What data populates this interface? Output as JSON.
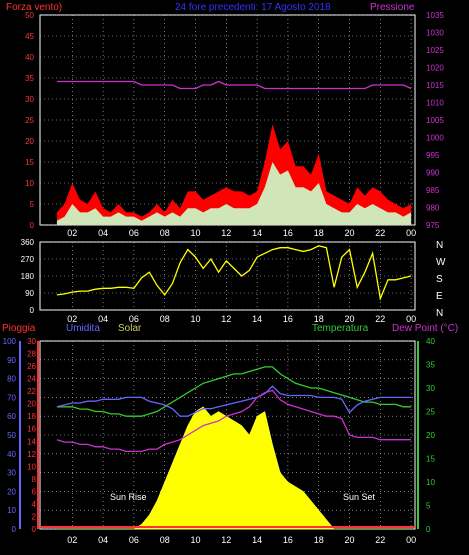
{
  "header": {
    "left_label": "Forza vento)",
    "center_label": "24 fore precedenti: 17 Agosto 2018",
    "right_label": "Pressione"
  },
  "legend": {
    "pioggia": "Pioggia",
    "umidita": "Umidita",
    "solar": "Solar",
    "temperatura": "Temperatura",
    "dewpoint": "Dew Point (°C)",
    "sunrise": "Sun Rise",
    "sunset": "Sun Set"
  },
  "colors": {
    "wind_gust": "#ff0000",
    "wind_avg": "#ccffcc",
    "pressure": "#cc33cc",
    "direction": "#ffff00",
    "rain": "#ff3333",
    "humidity": "#6666ff",
    "solar": "#ffff00",
    "temperature": "#33cc33",
    "dewpoint": "#cc33cc",
    "grid": "#cccccc"
  },
  "chart_data": [
    {
      "type": "area",
      "name": "wind_pressure",
      "x_ticks": [
        "02",
        "04",
        "06",
        "08",
        "10",
        "12",
        "14",
        "16",
        "18",
        "20",
        "22",
        "00"
      ],
      "y_left_ticks": [
        0,
        5,
        10,
        15,
        20,
        25,
        30,
        35,
        40,
        45,
        50
      ],
      "y_right_ticks": [
        975,
        980,
        985,
        990,
        995,
        1000,
        1005,
        1010,
        1015,
        1020,
        1025,
        1030,
        1035
      ],
      "ylim_left": [
        0,
        50
      ],
      "ylim_right": [
        975,
        1035
      ],
      "grid": true,
      "hours": [
        1.0,
        1.5,
        2.0,
        2.5,
        3.0,
        3.5,
        4.0,
        4.5,
        5.0,
        5.5,
        6.0,
        6.5,
        7.0,
        7.5,
        8.0,
        8.5,
        9.0,
        9.5,
        10.0,
        10.5,
        11.0,
        11.5,
        12.0,
        12.5,
        13.0,
        13.5,
        14.0,
        14.5,
        15.0,
        15.5,
        16.0,
        16.5,
        17.0,
        17.5,
        18.0,
        18.5,
        19.0,
        19.5,
        20.0,
        20.5,
        21.0,
        21.5,
        22.0,
        22.5,
        23.0,
        23.5,
        24.0
      ],
      "series": [
        {
          "key": "gust",
          "values": [
            3,
            5,
            10,
            6,
            5,
            8,
            4,
            3,
            5,
            3,
            3,
            2,
            3,
            5,
            3,
            6,
            4,
            8,
            8,
            6,
            7,
            8,
            9,
            8,
            8,
            7,
            8,
            15,
            24,
            18,
            20,
            14,
            14,
            12,
            17,
            8,
            7,
            6,
            5,
            9,
            7,
            9,
            8,
            6,
            5,
            4,
            5
          ]
        },
        {
          "key": "avg",
          "values": [
            1,
            2,
            5,
            3,
            3,
            4,
            2,
            2,
            3,
            2,
            2,
            1,
            2,
            3,
            2,
            3,
            2,
            4,
            4,
            3,
            4,
            4,
            5,
            4,
            4,
            4,
            5,
            9,
            15,
            12,
            13,
            9,
            9,
            8,
            10,
            5,
            4,
            3,
            3,
            5,
            4,
            5,
            4,
            3,
            3,
            2,
            3
          ]
        },
        {
          "key": "pressure",
          "values": [
            1016,
            1016,
            1016,
            1016,
            1016,
            1016,
            1016,
            1016,
            1016,
            1016,
            1016,
            1015,
            1015,
            1015,
            1015,
            1015,
            1014,
            1014,
            1014,
            1015,
            1015,
            1016,
            1015,
            1015,
            1015,
            1015,
            1015,
            1014,
            1014,
            1014,
            1014,
            1014,
            1014,
            1014,
            1014,
            1014,
            1014,
            1014,
            1014,
            1014,
            1014,
            1015,
            1015,
            1015,
            1015,
            1015,
            1014
          ]
        }
      ]
    },
    {
      "type": "line",
      "name": "wind_direction",
      "x_ticks": [
        "02",
        "04",
        "06",
        "08",
        "10",
        "12",
        "14",
        "16",
        "18",
        "20",
        "22",
        "00"
      ],
      "y_ticks": [
        0,
        90,
        180,
        270,
        360
      ],
      "y_labels_right": [
        "N",
        "W",
        "S",
        "E",
        "N"
      ],
      "ylim": [
        0,
        360
      ],
      "grid": true,
      "hours": [
        1.0,
        1.5,
        2.0,
        2.5,
        3.0,
        3.5,
        4.0,
        4.5,
        5.0,
        5.5,
        6.0,
        6.5,
        7.0,
        7.5,
        8.0,
        8.5,
        9.0,
        9.5,
        10.0,
        10.5,
        11.0,
        11.5,
        12.0,
        12.5,
        13.0,
        13.5,
        14.0,
        14.5,
        15.0,
        15.5,
        16.0,
        16.5,
        17.0,
        17.5,
        18.0,
        18.5,
        19.0,
        19.5,
        20.0,
        20.5,
        21.0,
        21.5,
        22.0,
        22.5,
        23.0,
        23.5,
        24.0
      ],
      "values": [
        80,
        85,
        95,
        100,
        100,
        110,
        115,
        115,
        120,
        120,
        115,
        170,
        200,
        130,
        80,
        140,
        250,
        320,
        280,
        220,
        270,
        200,
        260,
        220,
        180,
        210,
        280,
        300,
        320,
        330,
        330,
        320,
        310,
        320,
        340,
        330,
        120,
        280,
        320,
        120,
        200,
        300,
        60,
        160,
        160,
        170,
        180
      ]
    },
    {
      "type": "area",
      "name": "weather",
      "x_ticks": [
        "02",
        "04",
        "06",
        "08",
        "10",
        "12",
        "14",
        "16",
        "18",
        "20",
        "22",
        "00"
      ],
      "y_pioggia_ticks": [
        0,
        2,
        4,
        6,
        8,
        10,
        12,
        14,
        16,
        18,
        20,
        22,
        24,
        26,
        28,
        30
      ],
      "y_umidita_ticks": [
        0,
        10,
        20,
        30,
        40,
        50,
        60,
        70,
        80,
        90,
        100
      ],
      "y_temp_ticks": [
        0,
        5,
        10,
        15,
        20,
        25,
        30,
        35,
        40
      ],
      "ylim_humidity": [
        0,
        100
      ],
      "ylim_temp": [
        0,
        40
      ],
      "grid": true,
      "hours": [
        1.0,
        1.5,
        2.0,
        2.5,
        3.0,
        3.5,
        4.0,
        4.5,
        5.0,
        5.5,
        6.0,
        6.5,
        7.0,
        7.5,
        8.0,
        8.5,
        9.0,
        9.5,
        10.0,
        10.5,
        11.0,
        11.5,
        12.0,
        12.5,
        13.0,
        13.5,
        14.0,
        14.5,
        15.0,
        15.5,
        16.0,
        16.5,
        17.0,
        17.5,
        18.0,
        18.5,
        19.0,
        19.5,
        20.0,
        20.5,
        21.0,
        21.5,
        22.0,
        22.5,
        23.0,
        23.5,
        24.0
      ],
      "series": [
        {
          "key": "temperatura",
          "values": [
            26,
            26,
            26,
            25.5,
            25.5,
            25,
            25,
            24.5,
            24.5,
            24,
            24,
            24,
            24.5,
            25,
            26,
            27,
            28,
            29,
            30,
            31,
            31.5,
            32,
            32.5,
            33,
            33,
            33.5,
            34,
            34.5,
            34.5,
            33,
            32,
            31,
            30.5,
            30,
            30,
            29.5,
            29,
            28.5,
            28,
            27.5,
            27,
            27,
            26.5,
            26.5,
            26.5,
            26,
            26
          ]
        },
        {
          "key": "dewpoint",
          "values": [
            19,
            18.5,
            18.5,
            18,
            18,
            17.5,
            17.5,
            17,
            17,
            16.5,
            16.5,
            16.5,
            17,
            17,
            18,
            18.5,
            19,
            20,
            21,
            22,
            22.5,
            23,
            24,
            24.5,
            25,
            26,
            28,
            29,
            29.5,
            27.5,
            26.5,
            26,
            25.5,
            25,
            24.5,
            24,
            24,
            23.5,
            20,
            19.5,
            19.5,
            19.5,
            19,
            19,
            19,
            19,
            19
          ]
        },
        {
          "key": "umidita",
          "values": [
            65,
            66,
            67,
            67,
            68,
            68,
            69,
            69,
            69,
            70,
            70,
            70,
            68,
            67,
            66,
            64,
            60,
            60,
            62,
            64,
            64,
            65,
            66,
            67,
            68,
            69,
            70,
            72,
            76,
            72,
            71,
            71,
            71,
            71,
            70,
            70,
            70,
            69,
            62,
            66,
            68,
            69,
            70,
            70,
            70,
            70,
            70
          ]
        },
        {
          "key": "solar",
          "values": [
            0,
            0,
            0,
            0,
            0,
            0,
            0,
            0,
            0,
            0,
            0,
            1,
            3,
            6,
            10,
            14,
            18,
            22,
            25,
            26,
            24,
            25,
            24,
            23,
            22,
            20,
            24,
            25,
            18,
            12,
            10,
            9,
            8,
            6,
            4,
            2,
            0,
            0,
            0,
            0,
            0,
            0,
            0,
            0,
            0,
            0,
            0
          ]
        }
      ]
    }
  ]
}
